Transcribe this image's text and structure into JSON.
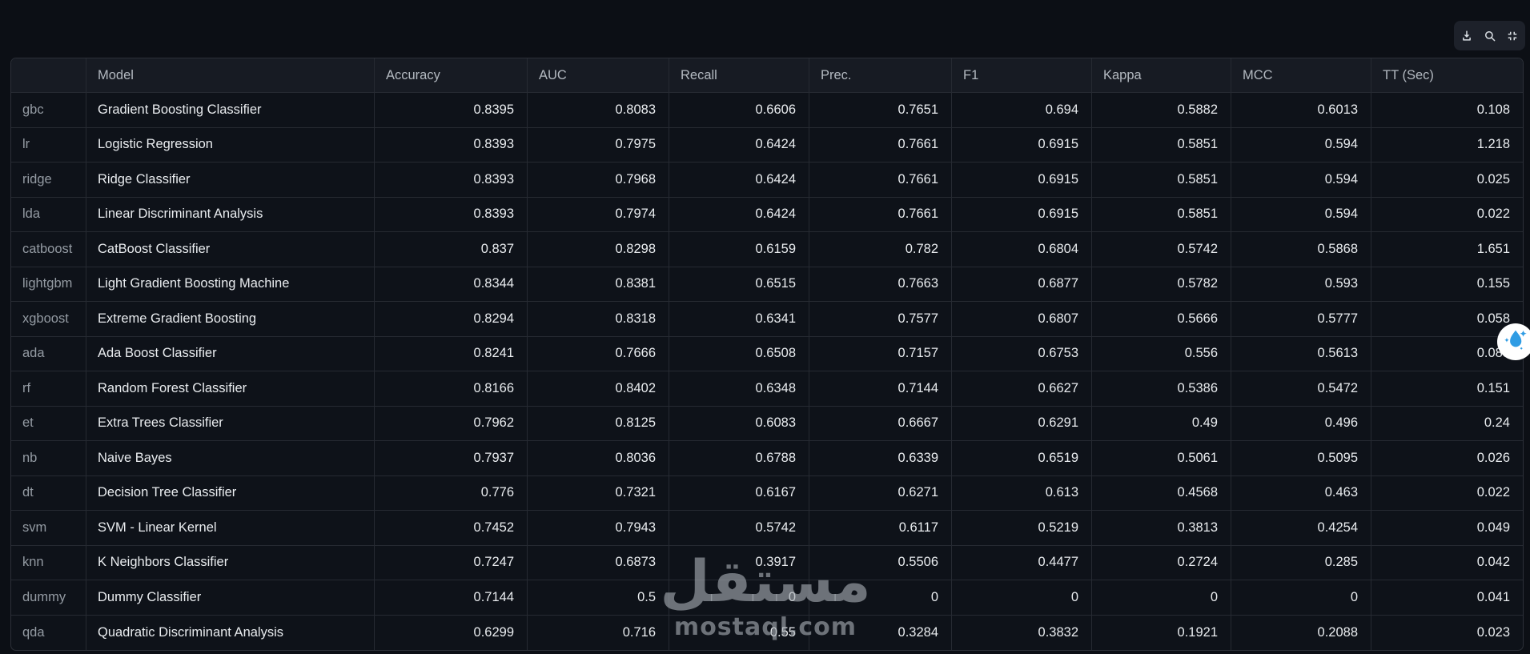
{
  "table": {
    "columns": [
      "",
      "Model",
      "Accuracy",
      "AUC",
      "Recall",
      "Prec.",
      "F1",
      "Kappa",
      "MCC",
      "TT (Sec)"
    ],
    "rows": [
      {
        "index": "gbc",
        "model": "Gradient Boosting Classifier",
        "metrics": [
          "0.8395",
          "0.8083",
          "0.6606",
          "0.7651",
          "0.694",
          "0.5882",
          "0.6013",
          "0.108"
        ]
      },
      {
        "index": "lr",
        "model": "Logistic Regression",
        "metrics": [
          "0.8393",
          "0.7975",
          "0.6424",
          "0.7661",
          "0.6915",
          "0.5851",
          "0.594",
          "1.218"
        ]
      },
      {
        "index": "ridge",
        "model": "Ridge Classifier",
        "metrics": [
          "0.8393",
          "0.7968",
          "0.6424",
          "0.7661",
          "0.6915",
          "0.5851",
          "0.594",
          "0.025"
        ]
      },
      {
        "index": "lda",
        "model": "Linear Discriminant Analysis",
        "metrics": [
          "0.8393",
          "0.7974",
          "0.6424",
          "0.7661",
          "0.6915",
          "0.5851",
          "0.594",
          "0.022"
        ]
      },
      {
        "index": "catboost",
        "model": "CatBoost Classifier",
        "metrics": [
          "0.837",
          "0.8298",
          "0.6159",
          "0.782",
          "0.6804",
          "0.5742",
          "0.5868",
          "1.651"
        ]
      },
      {
        "index": "lightgbm",
        "model": "Light Gradient Boosting Machine",
        "metrics": [
          "0.8344",
          "0.8381",
          "0.6515",
          "0.7663",
          "0.6877",
          "0.5782",
          "0.593",
          "0.155"
        ]
      },
      {
        "index": "xgboost",
        "model": "Extreme Gradient Boosting",
        "metrics": [
          "0.8294",
          "0.8318",
          "0.6341",
          "0.7577",
          "0.6807",
          "0.5666",
          "0.5777",
          "0.058"
        ]
      },
      {
        "index": "ada",
        "model": "Ada Boost Classifier",
        "metrics": [
          "0.8241",
          "0.7666",
          "0.6508",
          "0.7157",
          "0.6753",
          "0.556",
          "0.5613",
          "0.083"
        ]
      },
      {
        "index": "rf",
        "model": "Random Forest Classifier",
        "metrics": [
          "0.8166",
          "0.8402",
          "0.6348",
          "0.7144",
          "0.6627",
          "0.5386",
          "0.5472",
          "0.151"
        ]
      },
      {
        "index": "et",
        "model": "Extra Trees Classifier",
        "metrics": [
          "0.7962",
          "0.8125",
          "0.6083",
          "0.6667",
          "0.6291",
          "0.49",
          "0.496",
          "0.24"
        ]
      },
      {
        "index": "nb",
        "model": "Naive Bayes",
        "metrics": [
          "0.7937",
          "0.8036",
          "0.6788",
          "0.6339",
          "0.6519",
          "0.5061",
          "0.5095",
          "0.026"
        ]
      },
      {
        "index": "dt",
        "model": "Decision Tree Classifier",
        "metrics": [
          "0.776",
          "0.7321",
          "0.6167",
          "0.6271",
          "0.613",
          "0.4568",
          "0.463",
          "0.022"
        ]
      },
      {
        "index": "svm",
        "model": "SVM - Linear Kernel",
        "metrics": [
          "0.7452",
          "0.7943",
          "0.5742",
          "0.6117",
          "0.5219",
          "0.3813",
          "0.4254",
          "0.049"
        ]
      },
      {
        "index": "knn",
        "model": "K Neighbors Classifier",
        "metrics": [
          "0.7247",
          "0.6873",
          "0.3917",
          "0.5506",
          "0.4477",
          "0.2724",
          "0.285",
          "0.042"
        ]
      },
      {
        "index": "dummy",
        "model": "Dummy Classifier",
        "metrics": [
          "0.7144",
          "0.5",
          "0",
          "0",
          "0",
          "0",
          "0",
          "0.041"
        ]
      },
      {
        "index": "qda",
        "model": "Quadratic Discriminant Analysis",
        "metrics": [
          "0.6299",
          "0.716",
          "0.55",
          "0.3284",
          "0.3832",
          "0.1921",
          "0.2088",
          "0.023"
        ]
      }
    ]
  },
  "toolbar": {
    "buttons": [
      {
        "id": "download",
        "icon": "download-icon"
      },
      {
        "id": "search",
        "icon": "search-icon"
      },
      {
        "id": "fullscreen-exit",
        "icon": "fullscreen-exit-icon"
      }
    ]
  },
  "watermark": {
    "arabic": "مستقل",
    "domain": "mostaql.com"
  },
  "colors": {
    "page_background": "#0c0f15",
    "cell_background": "#0e1219",
    "header_background": "#171b23",
    "border": "#262a32",
    "badge_blue": "#2f9ce4"
  }
}
